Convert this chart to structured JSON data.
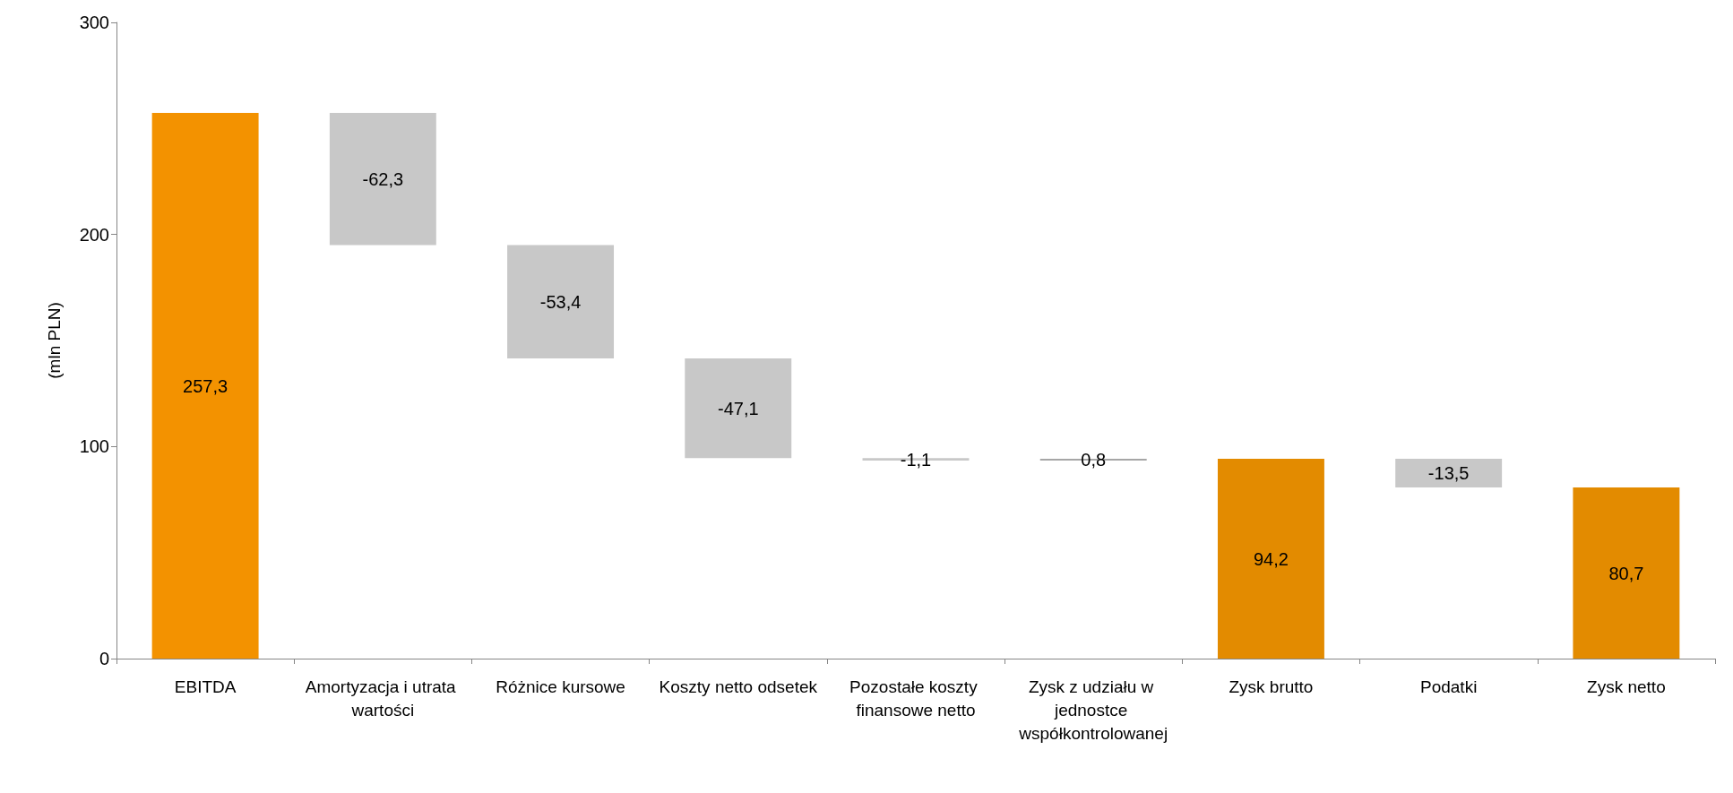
{
  "chart_data": {
    "type": "bar",
    "ylabel": "(mln PLN)",
    "categories": [
      "EBITDA",
      "Amortyzacja i utrata wartości",
      "Różnice kursowe",
      "Koszty netto odsetek",
      "Pozostałe koszty finansowe netto",
      "Zysk z udziału w jednostce współkontrolowanej",
      "Zysk brutto",
      "Podatki",
      "Zysk netto"
    ],
    "values": [
      257.3,
      -62.3,
      -53.4,
      -47.1,
      -1.1,
      0.8,
      94.2,
      -13.5,
      80.7
    ],
    "base": [
      0,
      257.3,
      195.0,
      141.6,
      94.5,
      93.4,
      0,
      94.2,
      0
    ],
    "colors": [
      "#f39200",
      "#c8c8c8",
      "#c8c8c8",
      "#c8c8c8",
      "#c8c8c8",
      "#a6a6a6",
      "#e38b00",
      "#c8c8c8",
      "#e38b00"
    ],
    "value_labels": [
      "257,3",
      "-62,3",
      "-53,4",
      "-47,1",
      "-1,1",
      "0,8",
      "94,2",
      "-13,5",
      "80,7"
    ],
    "ylim": [
      0,
      300
    ],
    "yticks": [
      0,
      100,
      200,
      300
    ],
    "grid": false
  }
}
